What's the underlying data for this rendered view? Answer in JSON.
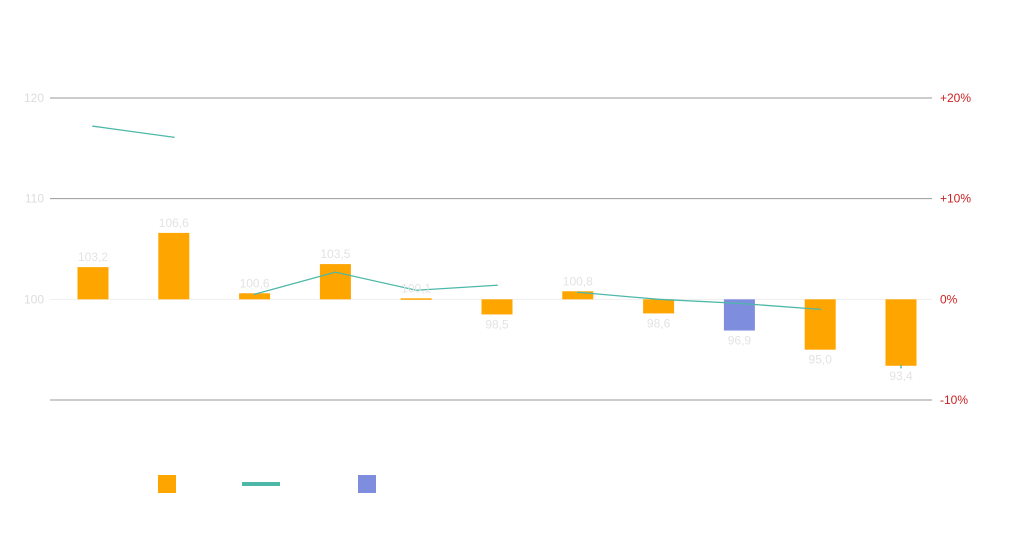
{
  "chart_data": {
    "type": "bar",
    "categories": [
      "",
      "",
      "",
      "",
      "",
      "",
      "",
      "",
      "",
      "",
      ""
    ],
    "baseline": 100,
    "ylim": [
      90,
      120
    ],
    "y_ticks": [
      {
        "value": 120,
        "label": "120"
      },
      {
        "value": 110,
        "label": "110"
      },
      {
        "value": 100,
        "label": "100"
      }
    ],
    "y2_ticks": [
      {
        "value": 20,
        "label": "+20%"
      },
      {
        "value": 10,
        "label": "+10%"
      },
      {
        "value": 0,
        "label": "0%"
      },
      {
        "value": -10,
        "label": "-10%"
      }
    ],
    "y2lim": [
      -10,
      20
    ],
    "series": [
      {
        "type": "bar",
        "values": [
          103.2,
          106.6,
          100.6,
          103.5,
          100.1,
          98.5,
          100.8,
          98.6,
          96.9,
          95.0,
          93.4
        ],
        "labels": [
          "103,2",
          "106,6",
          "100,6",
          "103,5",
          "100,1",
          "98,5",
          "100,8",
          "98,6",
          "96,9",
          "95,0",
          "93,4"
        ],
        "colors": [
          "#ffa500",
          "#ffa500",
          "#ffa500",
          "#ffa500",
          "#ffa500",
          "#ffa500",
          "#ffa500",
          "#ffa500",
          "#7f8ddf",
          "#ffa500",
          "#ffa500"
        ]
      },
      {
        "type": "line",
        "axis": "right",
        "color": "#4db8a8",
        "segments": [
          [
            [
              0,
              17.2
            ],
            [
              1,
              16.1
            ]
          ],
          [
            [
              2,
              0.5
            ],
            [
              3,
              2.7
            ],
            [
              4,
              0.9
            ],
            [
              5,
              1.4
            ]
          ],
          [
            [
              6,
              0.7
            ],
            [
              7,
              0.0
            ],
            [
              8,
              -0.4
            ],
            [
              9,
              -1.0
            ]
          ],
          [
            [
              10,
              -6.6
            ],
            [
              10,
              -6.8
            ]
          ]
        ]
      }
    ],
    "legend": {
      "placement": "bottom-left",
      "items": [
        {
          "kind": "box",
          "color": "#ffa500",
          "label": ""
        },
        {
          "kind": "line",
          "color": "#4db8a8",
          "label": ""
        },
        {
          "kind": "box",
          "color": "#7f8ddf",
          "label": ""
        }
      ]
    },
    "grid": true
  }
}
